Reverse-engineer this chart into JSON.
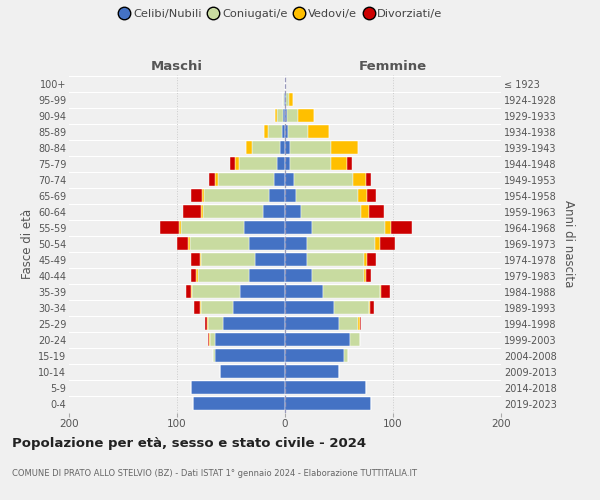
{
  "age_groups": [
    "0-4",
    "5-9",
    "10-14",
    "15-19",
    "20-24",
    "25-29",
    "30-34",
    "35-39",
    "40-44",
    "45-49",
    "50-54",
    "55-59",
    "60-64",
    "65-69",
    "70-74",
    "75-79",
    "80-84",
    "85-89",
    "90-94",
    "95-99",
    "100+"
  ],
  "birth_years": [
    "2019-2023",
    "2014-2018",
    "2009-2013",
    "2004-2008",
    "1999-2003",
    "1994-1998",
    "1989-1993",
    "1984-1988",
    "1979-1983",
    "1974-1978",
    "1969-1973",
    "1964-1968",
    "1959-1963",
    "1954-1958",
    "1949-1953",
    "1944-1948",
    "1939-1943",
    "1934-1938",
    "1929-1933",
    "1924-1928",
    "≤ 1923"
  ],
  "male_celibe": [
    85,
    87,
    60,
    65,
    65,
    57,
    48,
    42,
    33,
    28,
    33,
    38,
    20,
    15,
    10,
    7,
    5,
    3,
    2,
    1,
    0
  ],
  "male_coniugato": [
    0,
    0,
    0,
    2,
    4,
    14,
    30,
    44,
    48,
    50,
    55,
    58,
    56,
    60,
    52,
    36,
    26,
    13,
    5,
    1,
    0
  ],
  "male_vedovo": [
    0,
    0,
    0,
    0,
    1,
    1,
    1,
    1,
    1,
    1,
    2,
    2,
    2,
    2,
    3,
    3,
    5,
    3,
    2,
    0,
    0
  ],
  "male_divorziato": [
    0,
    0,
    0,
    0,
    1,
    2,
    5,
    5,
    5,
    8,
    10,
    18,
    16,
    10,
    5,
    5,
    0,
    0,
    0,
    0,
    0
  ],
  "female_celibe": [
    80,
    75,
    50,
    55,
    60,
    50,
    45,
    35,
    25,
    20,
    20,
    25,
    15,
    10,
    8,
    5,
    5,
    3,
    2,
    1,
    0
  ],
  "female_coniugata": [
    0,
    0,
    0,
    3,
    9,
    18,
    33,
    53,
    48,
    53,
    63,
    68,
    55,
    58,
    55,
    38,
    38,
    18,
    10,
    3,
    0
  ],
  "female_vedova": [
    0,
    0,
    0,
    0,
    0,
    1,
    1,
    1,
    2,
    3,
    5,
    5,
    8,
    8,
    12,
    14,
    25,
    20,
    15,
    3,
    0
  ],
  "female_divorziata": [
    0,
    0,
    0,
    0,
    0,
    1,
    3,
    8,
    5,
    8,
    14,
    20,
    14,
    8,
    5,
    5,
    0,
    0,
    0,
    0,
    0
  ],
  "colors": {
    "celibe": "#4472c4",
    "coniugato": "#c8dba0",
    "vedovo": "#ffbf00",
    "divorziato": "#cc0000"
  },
  "legend_labels": [
    "Celibi/Nubili",
    "Coniugati/e",
    "Vedovi/e",
    "Divorziati/e"
  ],
  "title": "Popolazione per età, sesso e stato civile - 2024",
  "subtitle": "COMUNE DI PRATO ALLO STELVIO (BZ) - Dati ISTAT 1° gennaio 2024 - Elaborazione TUTTITALIA.IT",
  "xlabel_left": "Maschi",
  "xlabel_right": "Femmine",
  "ylabel_left": "Fasce di età",
  "ylabel_right": "Anni di nascita",
  "xlim": 200,
  "bg_color": "#f0f0f0"
}
